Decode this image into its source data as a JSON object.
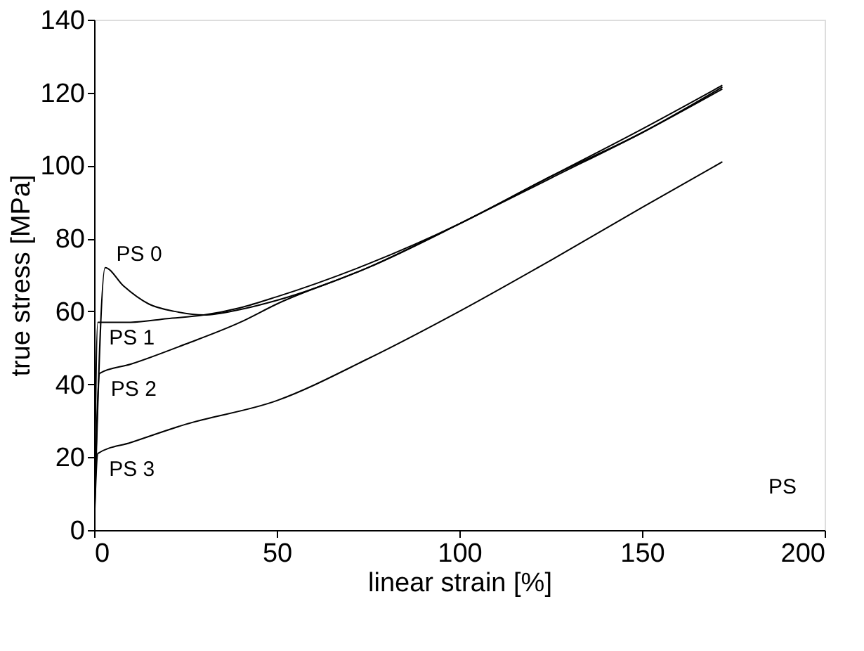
{
  "chart_data": {
    "type": "line",
    "xlabel": "linear strain [%]",
    "ylabel": "true stress [MPa]",
    "xlim": [
      0,
      200
    ],
    "ylim": [
      0,
      140
    ],
    "xticks": [
      0,
      50,
      100,
      150,
      200
    ],
    "yticks": [
      0,
      20,
      40,
      60,
      80,
      100,
      120,
      140
    ],
    "grid": false,
    "legend": false,
    "marker": "none",
    "line_style": "solid",
    "annotations": [
      "PS"
    ],
    "series": [
      {
        "name": "PS 0",
        "color": "#000000",
        "x": [
          0,
          3,
          8,
          15,
          22,
          30,
          40,
          50,
          75,
          100,
          125,
          150,
          172
        ],
        "values": [
          0,
          72,
          67,
          62,
          60,
          59,
          60.5,
          63,
          72,
          84,
          97,
          110,
          122
        ]
      },
      {
        "name": "PS 1",
        "color": "#000000",
        "x": [
          0,
          1,
          10,
          20,
          30,
          40,
          50,
          75,
          100,
          125,
          150,
          172
        ],
        "values": [
          0,
          57,
          57,
          58,
          59,
          61,
          64,
          73,
          84,
          97,
          109,
          121.5
        ]
      },
      {
        "name": "PS 2",
        "color": "#000000",
        "x": [
          0,
          1.5,
          10,
          25,
          40,
          50,
          75,
          100,
          125,
          150,
          172
        ],
        "values": [
          0,
          43,
          45.5,
          51,
          57,
          62,
          72,
          84,
          96.5,
          109,
          121
        ]
      },
      {
        "name": "PS 3",
        "color": "#000000",
        "x": [
          0,
          1,
          10,
          25,
          50,
          75,
          100,
          125,
          150,
          172
        ],
        "values": [
          0,
          21,
          24,
          29,
          35.5,
          47,
          60,
          74,
          88.5,
          101
        ]
      }
    ]
  }
}
